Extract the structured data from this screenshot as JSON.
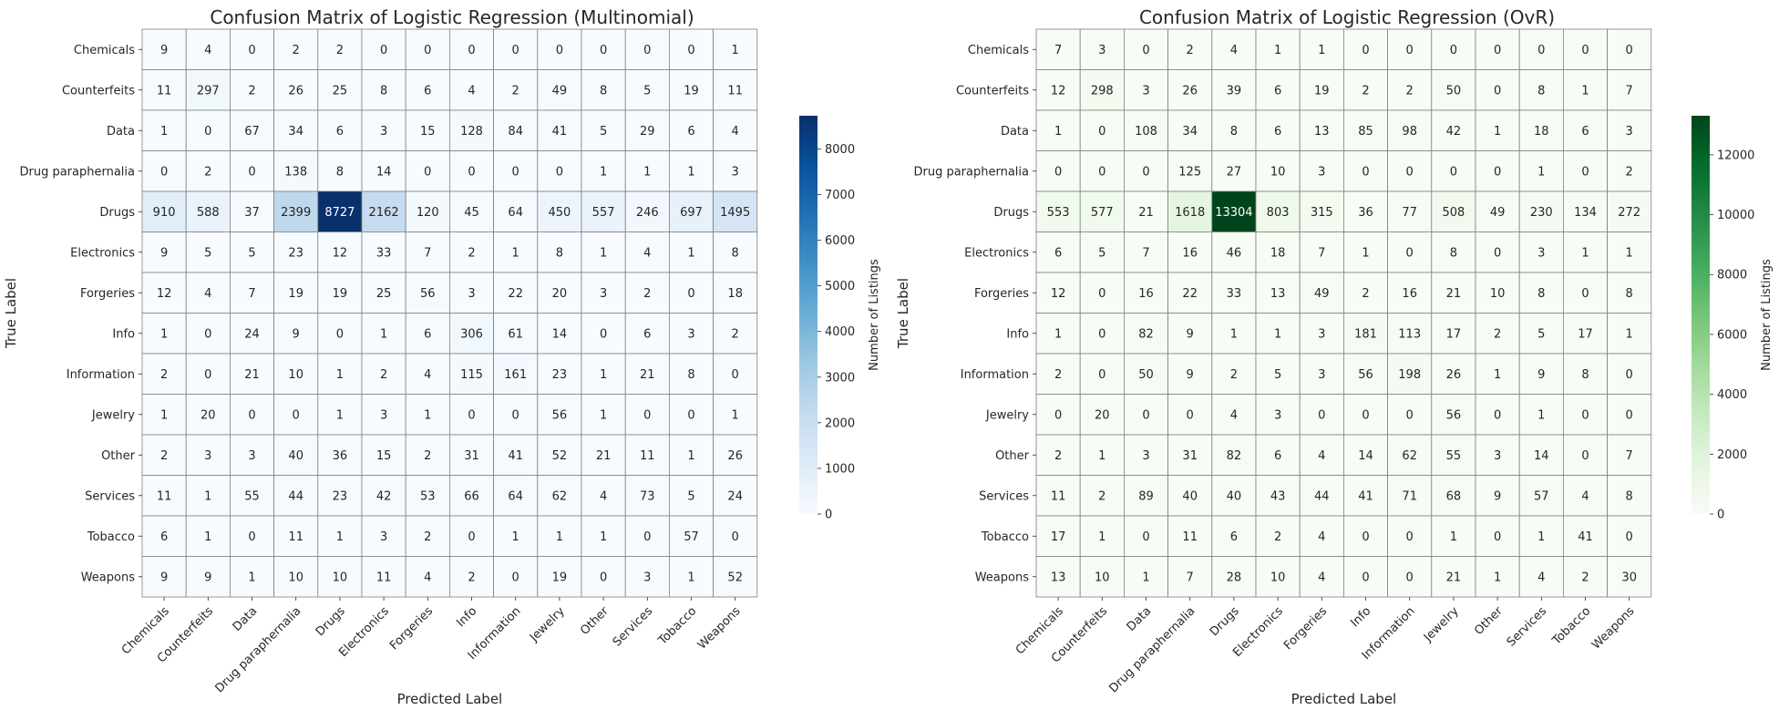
{
  "chart_data": [
    {
      "type": "heatmap",
      "title": "Confusion Matrix of Logistic Regression (Multinomial)",
      "xlabel": "Predicted Label",
      "ylabel": "True Label",
      "row_labels": [
        "Chemicals",
        "Counterfeits",
        "Data",
        "Drug paraphernalia",
        "Drugs",
        "Electronics",
        "Forgeries",
        "Info",
        "Information",
        "Jewelry",
        "Other",
        "Services",
        "Tobacco",
        "Weapons"
      ],
      "col_labels": [
        "Chemicals",
        "Counterfeits",
        "Data",
        "Drug paraphernalia",
        "Drugs",
        "Electronics",
        "Forgeries",
        "Info",
        "Information",
        "Jewelry",
        "Other",
        "Services",
        "Tobacco",
        "Weapons"
      ],
      "values": [
        [
          9,
          4,
          0,
          2,
          2,
          0,
          0,
          0,
          0,
          0,
          0,
          0,
          0,
          1
        ],
        [
          11,
          297,
          2,
          26,
          25,
          8,
          6,
          4,
          2,
          49,
          8,
          5,
          19,
          11
        ],
        [
          1,
          0,
          67,
          34,
          6,
          3,
          15,
          128,
          84,
          41,
          5,
          29,
          6,
          4
        ],
        [
          0,
          2,
          0,
          138,
          8,
          14,
          0,
          0,
          0,
          0,
          1,
          1,
          1,
          3
        ],
        [
          910,
          588,
          37,
          2399,
          8727,
          2162,
          120,
          45,
          64,
          450,
          557,
          246,
          697,
          1495
        ],
        [
          9,
          5,
          5,
          23,
          12,
          33,
          7,
          2,
          1,
          8,
          1,
          4,
          1,
          8
        ],
        [
          12,
          4,
          7,
          19,
          19,
          25,
          56,
          3,
          22,
          20,
          3,
          2,
          0,
          18
        ],
        [
          1,
          0,
          24,
          9,
          0,
          1,
          6,
          306,
          61,
          14,
          0,
          6,
          3,
          2
        ],
        [
          2,
          0,
          21,
          10,
          1,
          2,
          4,
          115,
          161,
          23,
          1,
          21,
          8,
          0
        ],
        [
          1,
          20,
          0,
          0,
          1,
          3,
          1,
          0,
          0,
          56,
          1,
          0,
          0,
          1
        ],
        [
          2,
          3,
          3,
          40,
          36,
          15,
          2,
          31,
          41,
          52,
          21,
          11,
          1,
          26
        ],
        [
          11,
          1,
          55,
          44,
          23,
          42,
          53,
          66,
          64,
          62,
          4,
          73,
          5,
          24
        ],
        [
          6,
          1,
          0,
          11,
          1,
          3,
          2,
          0,
          1,
          1,
          1,
          0,
          57,
          0
        ],
        [
          9,
          9,
          1,
          10,
          10,
          11,
          4,
          2,
          0,
          19,
          0,
          3,
          1,
          52
        ]
      ],
      "colormap": "Blues",
      "colorbar": {
        "label": "Number of Listings",
        "range": [
          0,
          8727
        ],
        "ticks": [
          0,
          1000,
          2000,
          3000,
          4000,
          5000,
          6000,
          7000,
          8000
        ],
        "tick_labels": [
          "0",
          "1000",
          "2000",
          "3000",
          "4000",
          "5000",
          "6000",
          "7000",
          "8000"
        ]
      },
      "colors": {
        "low": "#f7fbff",
        "high": "#08306b",
        "text_light": "#ffffff",
        "text_dark": "#262626"
      }
    },
    {
      "type": "heatmap",
      "title": "Confusion Matrix of Logistic Regression (OvR)",
      "xlabel": "Predicted Label",
      "ylabel": "True Label",
      "row_labels": [
        "Chemicals",
        "Counterfeits",
        "Data",
        "Drug paraphernalia",
        "Drugs",
        "Electronics",
        "Forgeries",
        "Info",
        "Information",
        "Jewelry",
        "Other",
        "Services",
        "Tobacco",
        "Weapons"
      ],
      "col_labels": [
        "Chemicals",
        "Counterfeits",
        "Data",
        "Drug paraphernalia",
        "Drugs",
        "Electronics",
        "Forgeries",
        "Info",
        "Information",
        "Jewelry",
        "Other",
        "Services",
        "Tobacco",
        "Weapons"
      ],
      "values": [
        [
          7,
          3,
          0,
          2,
          4,
          1,
          1,
          0,
          0,
          0,
          0,
          0,
          0,
          0
        ],
        [
          12,
          298,
          3,
          26,
          39,
          6,
          19,
          2,
          2,
          50,
          0,
          8,
          1,
          7
        ],
        [
          1,
          0,
          108,
          34,
          8,
          6,
          13,
          85,
          98,
          42,
          1,
          18,
          6,
          3
        ],
        [
          0,
          0,
          0,
          125,
          27,
          10,
          3,
          0,
          0,
          0,
          0,
          1,
          0,
          2
        ],
        [
          553,
          577,
          21,
          1618,
          13304,
          803,
          315,
          36,
          77,
          508,
          49,
          230,
          134,
          272
        ],
        [
          6,
          5,
          7,
          16,
          46,
          18,
          7,
          1,
          0,
          8,
          0,
          3,
          1,
          1
        ],
        [
          12,
          0,
          16,
          22,
          33,
          13,
          49,
          2,
          16,
          21,
          10,
          8,
          0,
          8
        ],
        [
          1,
          0,
          82,
          9,
          1,
          1,
          3,
          181,
          113,
          17,
          2,
          5,
          17,
          1
        ],
        [
          2,
          0,
          50,
          9,
          2,
          5,
          3,
          56,
          198,
          26,
          1,
          9,
          8,
          0
        ],
        [
          0,
          20,
          0,
          0,
          4,
          3,
          0,
          0,
          0,
          56,
          0,
          1,
          0,
          0
        ],
        [
          2,
          1,
          3,
          31,
          82,
          6,
          4,
          14,
          62,
          55,
          3,
          14,
          0,
          7
        ],
        [
          11,
          2,
          89,
          40,
          40,
          43,
          44,
          41,
          71,
          68,
          9,
          57,
          4,
          8
        ],
        [
          17,
          1,
          0,
          11,
          6,
          2,
          4,
          0,
          0,
          1,
          0,
          1,
          41,
          0
        ],
        [
          13,
          10,
          1,
          7,
          28,
          10,
          4,
          0,
          0,
          21,
          1,
          4,
          2,
          30
        ]
      ],
      "colormap": "Greens",
      "colorbar": {
        "label": "Number of Listings",
        "range": [
          0,
          13304
        ],
        "ticks": [
          0,
          2000,
          4000,
          6000,
          8000,
          10000,
          12000
        ],
        "tick_labels": [
          "0",
          "2000",
          "4000",
          "6000",
          "8000",
          "10000",
          "12000"
        ]
      },
      "colors": {
        "low": "#f7fcf5",
        "high": "#00441b",
        "text_light": "#ffffff",
        "text_dark": "#262626"
      }
    }
  ]
}
